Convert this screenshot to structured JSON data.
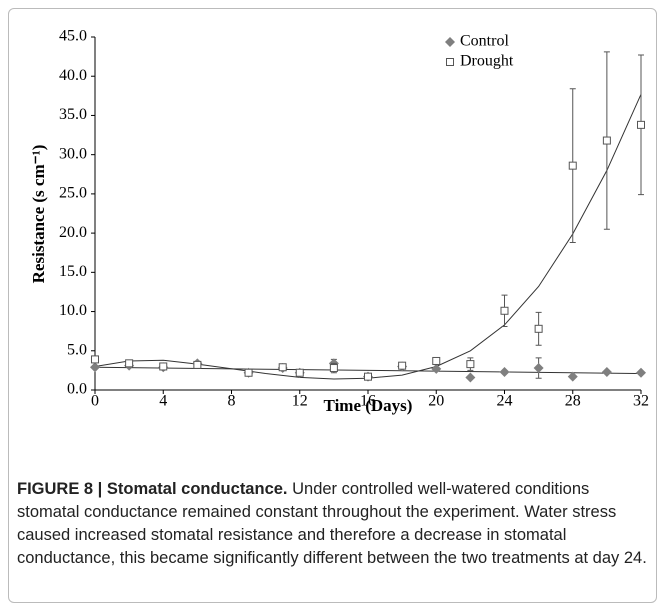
{
  "chart_data": {
    "type": "scatter",
    "xlabel": "Time (Days)",
    "ylabel": "Resistance (s cm⁻¹)",
    "xlim": [
      0,
      32
    ],
    "xticks": [
      0,
      4,
      8,
      12,
      16,
      20,
      24,
      28,
      32
    ],
    "ylim": [
      0,
      45
    ],
    "yticks": [
      {
        "value": 0,
        "label": "0.0"
      },
      {
        "value": 5,
        "label": "5.0"
      },
      {
        "value": 10,
        "label": "10.0"
      },
      {
        "value": 15,
        "label": "15.0"
      },
      {
        "value": 20,
        "label": "20.0"
      },
      {
        "value": 25,
        "label": "25.0"
      },
      {
        "value": 30,
        "label": "30.0"
      },
      {
        "value": 35,
        "label": "35.0"
      },
      {
        "value": 40,
        "label": "40.0"
      },
      {
        "value": 45,
        "label": "45.0"
      }
    ],
    "x": [
      0,
      2,
      4,
      6,
      9,
      11,
      12,
      14,
      16,
      18,
      20,
      22,
      24,
      26,
      28,
      30,
      32
    ],
    "series": [
      {
        "name": "Control",
        "color": "#7f7f7f",
        "marker": "diamond",
        "values": [
          2.9,
          3.1,
          2.9,
          3.4,
          2.2,
          2.8,
          2.2,
          3.4,
          1.7,
          3.0,
          2.7,
          1.6,
          2.3,
          2.8,
          1.7,
          2.3,
          2.2
        ],
        "errors": [
          null,
          null,
          null,
          null,
          null,
          null,
          null,
          0.5,
          null,
          null,
          null,
          null,
          null,
          1.3,
          null,
          null,
          null
        ]
      },
      {
        "name": "Drought",
        "color": "#555555",
        "marker": "square",
        "values": [
          3.9,
          3.4,
          3.0,
          3.2,
          2.2,
          2.9,
          2.2,
          2.8,
          1.7,
          3.1,
          3.7,
          3.3,
          10.1,
          7.8,
          28.6,
          31.8,
          33.8
        ],
        "errors": [
          null,
          null,
          null,
          null,
          null,
          null,
          null,
          0.6,
          null,
          null,
          0.3,
          0.8,
          2.0,
          2.1,
          9.8,
          11.3,
          8.9
        ]
      }
    ],
    "trendlines": [
      {
        "x": [
          0,
          32
        ],
        "values": [
          2.9,
          2.1
        ]
      },
      {
        "x": [
          0,
          2,
          4,
          6,
          8,
          10,
          12,
          14,
          16,
          18,
          20,
          22,
          24,
          26,
          28,
          30,
          32
        ],
        "values": [
          3.0,
          3.7,
          3.8,
          3.3,
          2.7,
          2.1,
          1.6,
          1.4,
          1.5,
          1.9,
          3.0,
          5.0,
          8.3,
          13.2,
          19.9,
          28.0,
          37.7
        ]
      }
    ],
    "legend": "upper-right"
  },
  "caption": {
    "label": "FIGURE 8 | Stomatal conductance.",
    "text": "Under controlled well-watered conditions stomatal conductance remained constant throughout the experiment. Water stress caused increased stomatal resistance and therefore a decrease in stomatal conductance, this became significantly different between the two treatments at day 24."
  }
}
